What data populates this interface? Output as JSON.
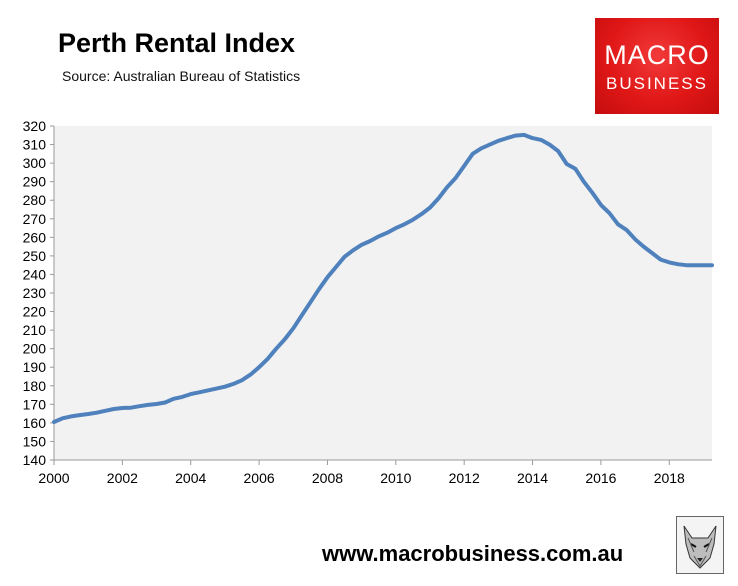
{
  "header": {
    "title": "Perth Rental Index",
    "subtitle": "Source: Australian Bureau of Statistics"
  },
  "logo": {
    "line1": "MACRO",
    "line2": "BUSINESS"
  },
  "footer": {
    "url": "www.macrobusiness.com.au"
  },
  "colors": {
    "line": "#4f81bd",
    "plot_bg": "#f2f2f2",
    "logo_red": "#e01717"
  },
  "chart_data": {
    "type": "line",
    "title": "Perth Rental Index",
    "subtitle": "Source: Australian Bureau of Statistics",
    "xlim": [
      2000,
      2019.25
    ],
    "ylim": [
      140,
      320
    ],
    "x_ticks": [
      2000,
      2002,
      2004,
      2006,
      2008,
      2010,
      2012,
      2014,
      2016,
      2018
    ],
    "y_ticks": [
      140,
      150,
      160,
      170,
      180,
      190,
      200,
      210,
      220,
      230,
      240,
      250,
      260,
      270,
      280,
      290,
      300,
      310,
      320
    ],
    "grid": false,
    "legend": "none",
    "series": [
      {
        "x": [
          2000.0,
          2000.25,
          2000.5,
          2000.75,
          2001.0,
          2001.25,
          2001.5,
          2001.75,
          2002.0,
          2002.25,
          2002.5,
          2002.75,
          2003.0,
          2003.25,
          2003.5,
          2003.75,
          2004.0,
          2004.25,
          2004.5,
          2004.75,
          2005.0,
          2005.25,
          2005.5,
          2005.75,
          2006.0,
          2006.25,
          2006.5,
          2006.75,
          2007.0,
          2007.25,
          2007.5,
          2007.75,
          2008.0,
          2008.25,
          2008.5,
          2008.75,
          2009.0,
          2009.25,
          2009.5,
          2009.75,
          2010.0,
          2010.25,
          2010.5,
          2010.75,
          2011.0,
          2011.25,
          2011.5,
          2011.75,
          2012.0,
          2012.25,
          2012.5,
          2012.75,
          2013.0,
          2013.25,
          2013.5,
          2013.75,
          2014.0,
          2014.25,
          2014.5,
          2014.75,
          2015.0,
          2015.25,
          2015.5,
          2015.75,
          2016.0,
          2016.25,
          2016.5,
          2016.75,
          2017.0,
          2017.25,
          2017.5,
          2017.75,
          2018.0,
          2018.25,
          2018.5,
          2018.75,
          2019.0,
          2019.25
        ],
        "y": [
          160.5,
          162.5,
          163.5,
          164.2,
          164.8,
          165.5,
          166.5,
          167.5,
          168.0,
          168.2,
          169.0,
          169.7,
          170.2,
          171.0,
          173.0,
          174.0,
          175.5,
          176.5,
          177.5,
          178.5,
          179.5,
          181.0,
          183.0,
          186.0,
          190.0,
          194.5,
          200.0,
          205.0,
          211.0,
          218.0,
          225.0,
          232.0,
          238.5,
          244.0,
          249.5,
          253.0,
          256.0,
          258.0,
          260.5,
          262.5,
          265.0,
          267.0,
          269.5,
          272.5,
          276.0,
          281.0,
          287.0,
          292.0,
          298.5,
          305.0,
          308.0,
          310.0,
          312.0,
          313.5,
          314.8,
          315.2,
          313.5,
          312.5,
          310.0,
          306.5,
          299.5,
          297.0,
          290.0,
          284.0,
          277.5,
          273.0,
          267.0,
          264.0,
          259.0,
          255.0,
          251.5,
          248.0,
          246.5,
          245.5,
          245.0,
          245.0,
          245.0,
          245.0
        ]
      }
    ]
  }
}
